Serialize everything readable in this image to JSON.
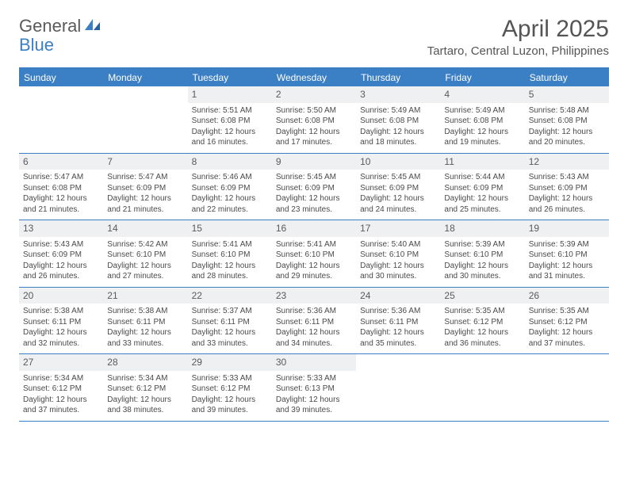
{
  "logo": {
    "text1": "General",
    "text2": "Blue"
  },
  "title": "April 2025",
  "location": "Tartaro, Central Luzon, Philippines",
  "colors": {
    "accent": "#3b7fc4",
    "header_bg": "#3b7fc4",
    "header_text": "#ffffff",
    "daynum_bg": "#eef0f2",
    "text": "#4a4a4a",
    "title_text": "#555555"
  },
  "day_headers": [
    "Sunday",
    "Monday",
    "Tuesday",
    "Wednesday",
    "Thursday",
    "Friday",
    "Saturday"
  ],
  "weeks": [
    [
      null,
      null,
      {
        "n": "1",
        "sr": "5:51 AM",
        "ss": "6:08 PM",
        "dl": "12 hours and 16 minutes."
      },
      {
        "n": "2",
        "sr": "5:50 AM",
        "ss": "6:08 PM",
        "dl": "12 hours and 17 minutes."
      },
      {
        "n": "3",
        "sr": "5:49 AM",
        "ss": "6:08 PM",
        "dl": "12 hours and 18 minutes."
      },
      {
        "n": "4",
        "sr": "5:49 AM",
        "ss": "6:08 PM",
        "dl": "12 hours and 19 minutes."
      },
      {
        "n": "5",
        "sr": "5:48 AM",
        "ss": "6:08 PM",
        "dl": "12 hours and 20 minutes."
      }
    ],
    [
      {
        "n": "6",
        "sr": "5:47 AM",
        "ss": "6:08 PM",
        "dl": "12 hours and 21 minutes."
      },
      {
        "n": "7",
        "sr": "5:47 AM",
        "ss": "6:09 PM",
        "dl": "12 hours and 21 minutes."
      },
      {
        "n": "8",
        "sr": "5:46 AM",
        "ss": "6:09 PM",
        "dl": "12 hours and 22 minutes."
      },
      {
        "n": "9",
        "sr": "5:45 AM",
        "ss": "6:09 PM",
        "dl": "12 hours and 23 minutes."
      },
      {
        "n": "10",
        "sr": "5:45 AM",
        "ss": "6:09 PM",
        "dl": "12 hours and 24 minutes."
      },
      {
        "n": "11",
        "sr": "5:44 AM",
        "ss": "6:09 PM",
        "dl": "12 hours and 25 minutes."
      },
      {
        "n": "12",
        "sr": "5:43 AM",
        "ss": "6:09 PM",
        "dl": "12 hours and 26 minutes."
      }
    ],
    [
      {
        "n": "13",
        "sr": "5:43 AM",
        "ss": "6:09 PM",
        "dl": "12 hours and 26 minutes."
      },
      {
        "n": "14",
        "sr": "5:42 AM",
        "ss": "6:10 PM",
        "dl": "12 hours and 27 minutes."
      },
      {
        "n": "15",
        "sr": "5:41 AM",
        "ss": "6:10 PM",
        "dl": "12 hours and 28 minutes."
      },
      {
        "n": "16",
        "sr": "5:41 AM",
        "ss": "6:10 PM",
        "dl": "12 hours and 29 minutes."
      },
      {
        "n": "17",
        "sr": "5:40 AM",
        "ss": "6:10 PM",
        "dl": "12 hours and 30 minutes."
      },
      {
        "n": "18",
        "sr": "5:39 AM",
        "ss": "6:10 PM",
        "dl": "12 hours and 30 minutes."
      },
      {
        "n": "19",
        "sr": "5:39 AM",
        "ss": "6:10 PM",
        "dl": "12 hours and 31 minutes."
      }
    ],
    [
      {
        "n": "20",
        "sr": "5:38 AM",
        "ss": "6:11 PM",
        "dl": "12 hours and 32 minutes."
      },
      {
        "n": "21",
        "sr": "5:38 AM",
        "ss": "6:11 PM",
        "dl": "12 hours and 33 minutes."
      },
      {
        "n": "22",
        "sr": "5:37 AM",
        "ss": "6:11 PM",
        "dl": "12 hours and 33 minutes."
      },
      {
        "n": "23",
        "sr": "5:36 AM",
        "ss": "6:11 PM",
        "dl": "12 hours and 34 minutes."
      },
      {
        "n": "24",
        "sr": "5:36 AM",
        "ss": "6:11 PM",
        "dl": "12 hours and 35 minutes."
      },
      {
        "n": "25",
        "sr": "5:35 AM",
        "ss": "6:12 PM",
        "dl": "12 hours and 36 minutes."
      },
      {
        "n": "26",
        "sr": "5:35 AM",
        "ss": "6:12 PM",
        "dl": "12 hours and 37 minutes."
      }
    ],
    [
      {
        "n": "27",
        "sr": "5:34 AM",
        "ss": "6:12 PM",
        "dl": "12 hours and 37 minutes."
      },
      {
        "n": "28",
        "sr": "5:34 AM",
        "ss": "6:12 PM",
        "dl": "12 hours and 38 minutes."
      },
      {
        "n": "29",
        "sr": "5:33 AM",
        "ss": "6:12 PM",
        "dl": "12 hours and 39 minutes."
      },
      {
        "n": "30",
        "sr": "5:33 AM",
        "ss": "6:13 PM",
        "dl": "12 hours and 39 minutes."
      },
      null,
      null,
      null
    ]
  ],
  "labels": {
    "sunrise": "Sunrise:",
    "sunset": "Sunset:",
    "daylight": "Daylight:"
  }
}
